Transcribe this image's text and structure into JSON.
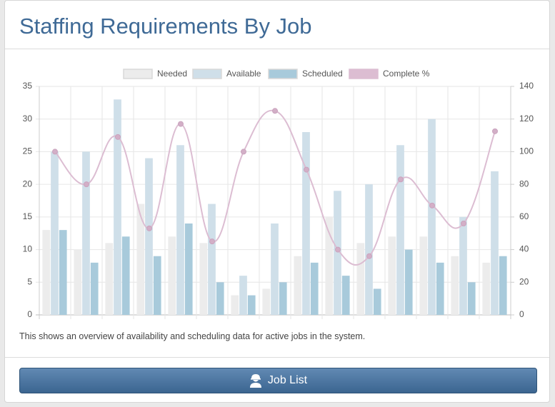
{
  "header": {
    "title": "Staffing Requirements By Job"
  },
  "chart_data": {
    "type": "bar",
    "categories": [
      null,
      null,
      null,
      null,
      null,
      null,
      null,
      null,
      null,
      null,
      null,
      null,
      null,
      null,
      null
    ],
    "series": [
      {
        "name": "Needed",
        "color": "#ececec",
        "values": [
          13,
          10,
          11,
          17,
          12,
          11,
          3,
          4,
          9,
          15,
          11,
          12,
          12,
          9,
          8
        ]
      },
      {
        "name": "Available",
        "color": "#cfdfe9",
        "values": [
          25,
          25,
          33,
          24,
          26,
          17,
          6,
          14,
          28,
          19,
          20,
          26,
          30,
          15,
          22
        ]
      },
      {
        "name": "Scheduled",
        "color": "#a8cadb",
        "values": [
          13,
          8,
          12,
          9,
          14,
          5,
          3,
          5,
          8,
          6,
          4,
          10,
          8,
          5,
          9
        ]
      },
      {
        "name": "Complete %",
        "color": "#dcbdd2",
        "type": "line",
        "axis": "y2",
        "values": [
          100,
          80,
          109,
          53,
          117,
          45,
          100,
          125,
          89,
          40,
          36,
          83,
          67,
          56,
          112.5
        ]
      }
    ],
    "ylim": [
      0,
      35
    ],
    "yticks": [
      0,
      5,
      10,
      15,
      20,
      25,
      30,
      35
    ],
    "y2lim": [
      0,
      140
    ],
    "y2ticks": [
      0,
      20,
      40,
      60,
      80,
      100,
      120,
      140
    ],
    "grid": true,
    "legend": "top"
  },
  "description": "This shows an overview of availability and scheduling data for active jobs in the system.",
  "button": {
    "label": "Job List"
  }
}
